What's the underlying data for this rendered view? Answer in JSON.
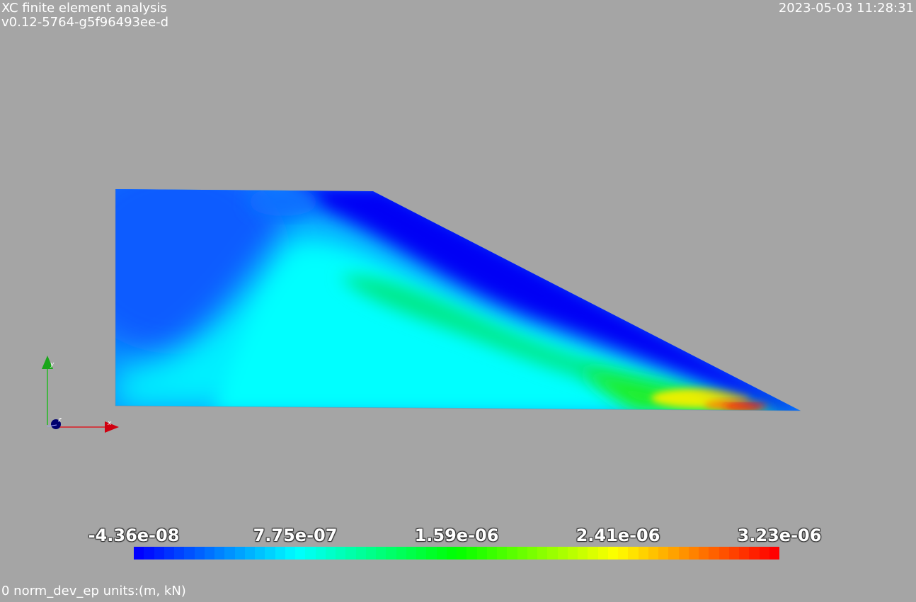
{
  "header": {
    "app_title": "XC finite element analysis",
    "version": "v0.12-5764-g5f96493ee-d",
    "timestamp": "2023-05-03 11:28:31"
  },
  "footer": {
    "caption": "0 norm_dev_ep units:(m, kN)"
  },
  "scalar_bar": {
    "labels": [
      "-4.36e-08",
      "7.75e-07",
      "1.59e-06",
      "2.41e-06",
      "3.23e-06"
    ],
    "colormap": "rainbow blue-cyan-green-yellow-red",
    "colors": {
      "low": "#0000ff",
      "mid_low": "#00ffff",
      "mid": "#00ff00",
      "mid_high": "#ffff00",
      "high": "#ff0000"
    }
  },
  "orientation_axes": {
    "x_label": "x",
    "y_label": "y",
    "z_label": "z",
    "colors": {
      "x": "#e8000b",
      "y": "#00c000",
      "z": "#000080"
    }
  },
  "colors": {
    "background": "#a5a5a5",
    "text": "#ffffff"
  }
}
